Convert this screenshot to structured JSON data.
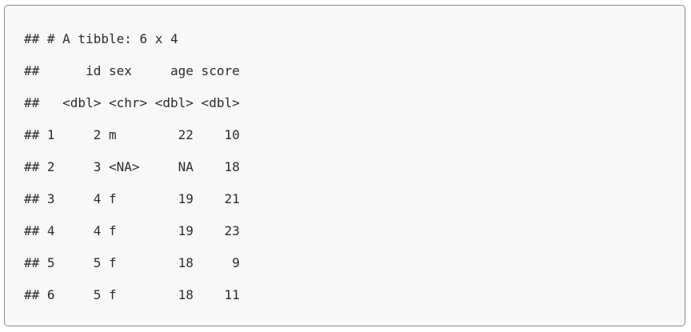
{
  "output": {
    "lines": [
      "## # A tibble: 6 x 4",
      "##      id sex     age score",
      "##   <dbl> <chr> <dbl> <dbl>",
      "## 1     2 m        22    10",
      "## 2     3 <NA>     NA    18",
      "## 3     4 f        19    21",
      "## 4     4 f        19    23",
      "## 5     5 f        18     9",
      "## 6     5 f        18    11"
    ]
  }
}
